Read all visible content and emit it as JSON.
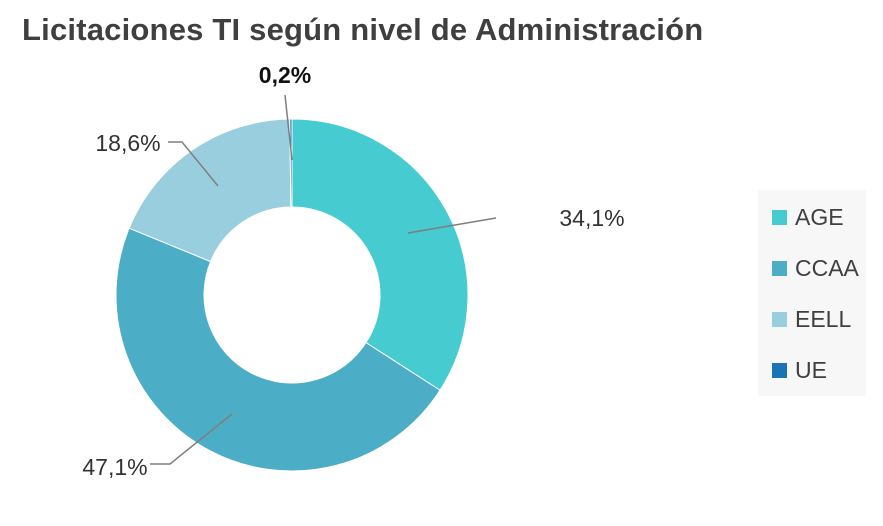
{
  "chart_data": {
    "type": "pie",
    "variant": "donut",
    "title": "Licitaciones TI según nivel de Administración",
    "categories": [
      "AGE",
      "CCAA",
      "EELL",
      "UE"
    ],
    "values": [
      34.1,
      47.1,
      18.6,
      0.2
    ],
    "data_labels": [
      "34,1%",
      "47,1%",
      "18,6%",
      "0,2%"
    ],
    "colors": [
      "#46cbd0",
      "#4badc6",
      "#98cede",
      "#1a73b5"
    ],
    "legend": {
      "position": "right",
      "entries": [
        "AGE",
        "CCAA",
        "EELL",
        "UE"
      ]
    }
  }
}
